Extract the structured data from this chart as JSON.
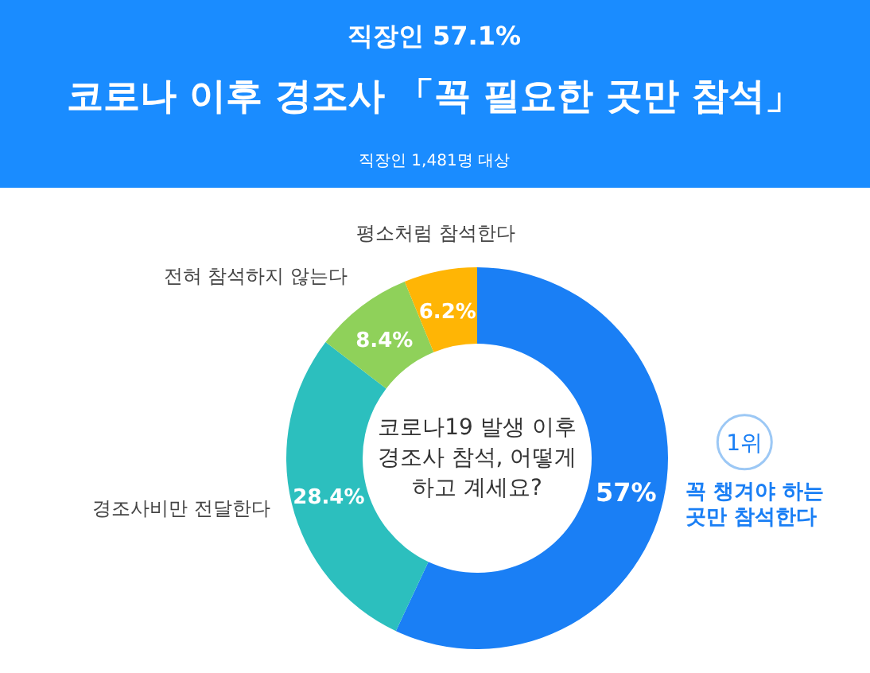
{
  "chart_data": {
    "type": "donut",
    "subtitle": "직장인 57.1%",
    "title": "코로나 이후 경조사 「꼭 필요한 곳만 참석」",
    "categories": [
      "꼭 챙겨야 하는 곳만 참석한다",
      "경조사비만 전달한다",
      "전혀 참석하지 않는다",
      "평소처럼 참석한다"
    ],
    "values": [
      57,
      28.4,
      8.4,
      6.2
    ],
    "colors": [
      "#1a7ff5",
      "#2cbfbe",
      "#8fd15a",
      "#ffb505"
    ],
    "value_labels": [
      "57%",
      "28.4%",
      "8.4%",
      "6.2%"
    ],
    "annotations": [
      "직장인 1,481명 대상",
      "코로나19 발생 이후 경조사 참석, 어떻게 하고 계세요?",
      "1위"
    ]
  }
}
